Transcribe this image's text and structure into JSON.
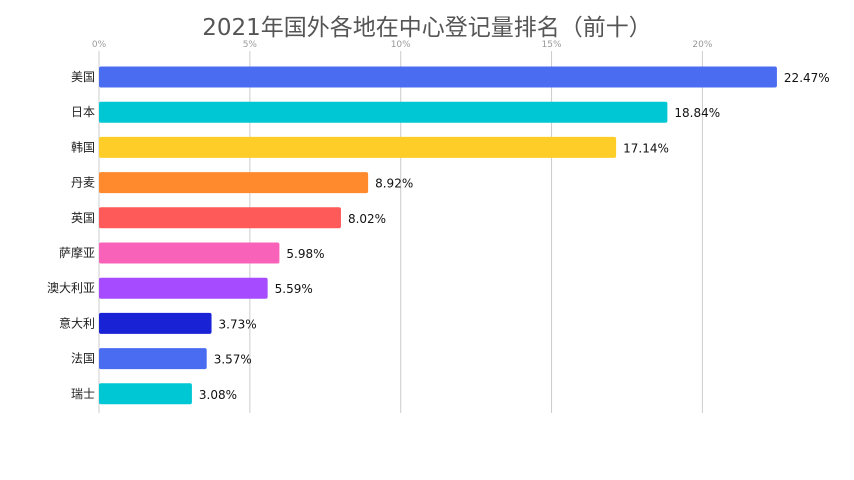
{
  "chart_data": {
    "type": "bar",
    "orientation": "horizontal",
    "title": "2021年国外各地在中心登记量排名（前十）",
    "categories": [
      "美国",
      "日本",
      "韩国",
      "丹麦",
      "英国",
      "萨摩亚",
      "澳大利亚",
      "意大利",
      "法国",
      "瑞士"
    ],
    "values": [
      22.47,
      18.84,
      17.14,
      8.92,
      8.02,
      5.98,
      5.59,
      3.73,
      3.57,
      3.08
    ],
    "value_labels": [
      "22.47%",
      "18.84%",
      "17.14%",
      "8.92%",
      "8.02%",
      "5.98%",
      "5.59%",
      "3.73%",
      "3.57%",
      "3.08%"
    ],
    "colors": [
      "#4a6cf0",
      "#00c7d4",
      "#ffcd28",
      "#ff8a2d",
      "#ff5a5a",
      "#f862b8",
      "#a64bff",
      "#1a22d6",
      "#4a6cf0",
      "#00c7d4"
    ],
    "xaxis": {
      "position": "top",
      "ticks": [
        0,
        5,
        10,
        15,
        20
      ],
      "tick_labels": [
        "0%",
        "5%",
        "10%",
        "15%",
        "20%"
      ]
    },
    "xlim": [
      0,
      23.5
    ],
    "grid": true,
    "legend": "none"
  }
}
